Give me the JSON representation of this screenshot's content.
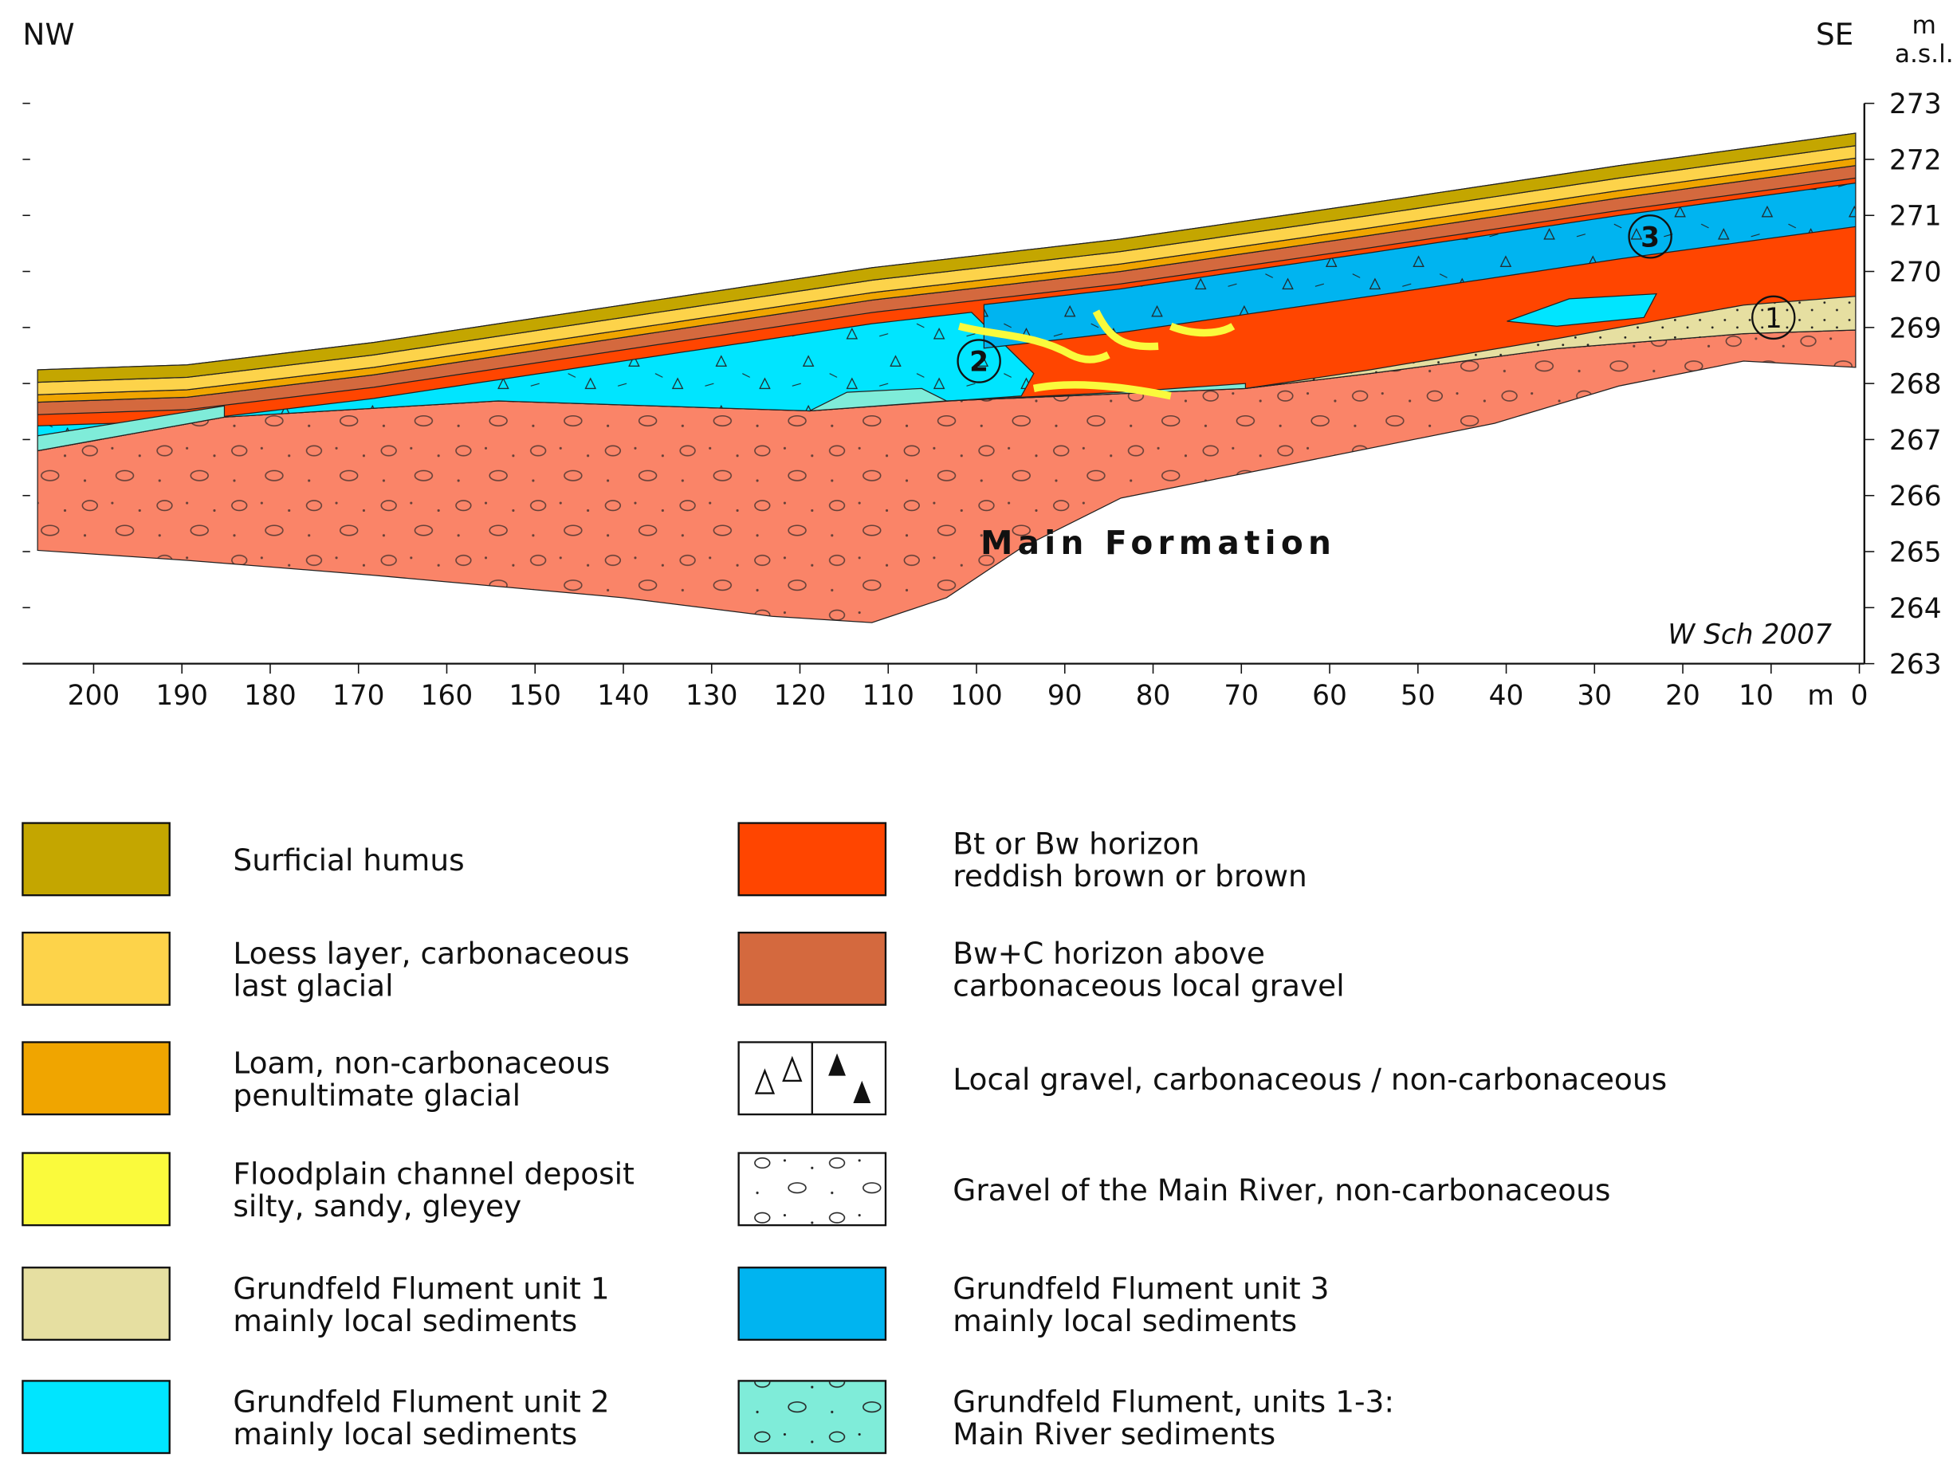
{
  "header": {
    "left": "NW",
    "right": "SE",
    "unit": "m",
    "unit_sub": "a.s.l."
  },
  "axes": {
    "x": {
      "lim": [
        200,
        0
      ],
      "ticks": [
        200,
        190,
        180,
        170,
        160,
        150,
        140,
        130,
        120,
        110,
        100,
        90,
        80,
        70,
        60,
        50,
        40,
        30,
        20,
        10,
        0
      ],
      "unit": "m"
    },
    "y": {
      "lim": [
        263,
        273
      ],
      "ticks": [
        263,
        264,
        265,
        266,
        267,
        268,
        269,
        270,
        271,
        272,
        273
      ]
    }
  },
  "labels": {
    "formation": "Main Formation",
    "credit": "W Sch 2007",
    "units": [
      "1",
      "2",
      "3"
    ]
  },
  "legend": [
    {
      "color": "#c4a600",
      "lines": [
        "Surficial humus"
      ]
    },
    {
      "color": "#fdd34a",
      "lines": [
        "Loess layer, carbonaceous",
        "last glacial"
      ]
    },
    {
      "color": "#f0a500",
      "lines": [
        "Loam, non-carbonaceous",
        "penultimate glacial"
      ]
    },
    {
      "color": "#fafa3c",
      "lines": [
        "Floodplain channel deposit",
        "silty, sandy, gleyey"
      ]
    },
    {
      "color": "#e6dfa1",
      "lines": [
        "Grundfeld Flument unit 1",
        "mainly local sediments"
      ]
    },
    {
      "color": "#00e5ff",
      "lines": [
        "Grundfeld Flument unit 2",
        "mainly local sediments"
      ]
    },
    {
      "color": "#ff4500",
      "lines": [
        "Bt or Bw horizon",
        "reddish brown or brown"
      ]
    },
    {
      "color": "#d4693e",
      "lines": [
        "Bw+C horizon above",
        "carbonaceous local gravel"
      ]
    },
    {
      "color": "#ffffff",
      "fill_pattern": "triangles",
      "lines": [
        "Local gravel, carbonaceous / non-carbonaceous"
      ]
    },
    {
      "color": "#ffffff",
      "fill_pattern": "gravel",
      "lines": [
        "Gravel of the Main River, non-carbonaceous"
      ]
    },
    {
      "color": "#00b4f0",
      "lines": [
        "Grundfeld Flument unit 3",
        "mainly local sediments"
      ]
    },
    {
      "color": "#7fecd9",
      "fill_pattern": "gravel",
      "lines": [
        "Grundfeld Flument, units 1-3:",
        "Main River sediments"
      ]
    }
  ]
}
